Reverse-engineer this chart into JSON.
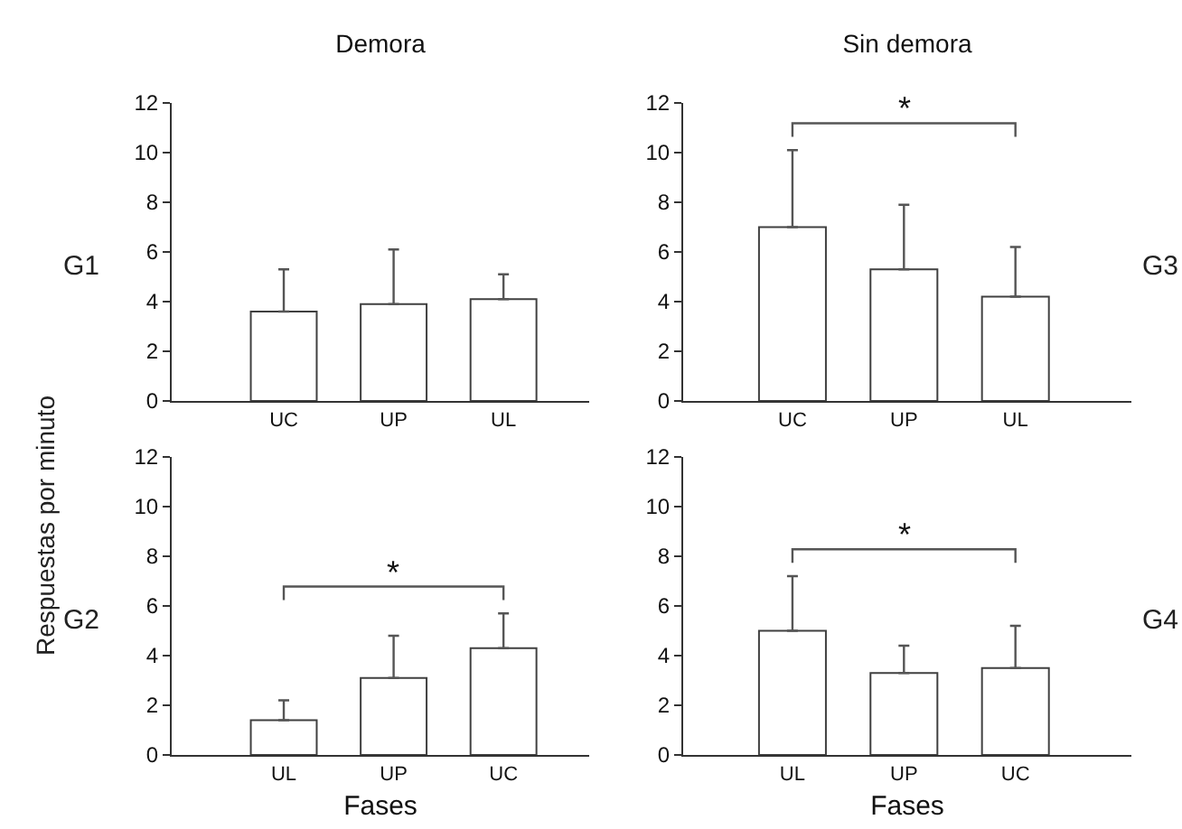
{
  "chart_data": [
    {
      "type": "bar",
      "title": "Demora",
      "ylabel": "Respuestas por minuto",
      "categories": [
        "UC",
        "UP",
        "UL"
      ],
      "values": [
        3.6,
        3.9,
        4.1
      ],
      "errors": [
        [
          3.6,
          5.3
        ],
        [
          3.9,
          6.1
        ],
        [
          4.1,
          5.1
        ]
      ],
      "color": "#ffffff",
      "ylim": [
        0,
        12
      ],
      "yticks": [
        0,
        2,
        4,
        6,
        8,
        10,
        12
      ],
      "grid": false,
      "annotations": [
        "G1"
      ]
    },
    {
      "type": "bar",
      "title": "Sin demora",
      "categories": [
        "UC",
        "UP",
        "UL"
      ],
      "values": [
        7.0,
        5.3,
        4.2
      ],
      "errors": [
        [
          7.0,
          10.1
        ],
        [
          5.3,
          7.9
        ],
        [
          4.2,
          6.2
        ]
      ],
      "color": "#ffffff",
      "ylim": [
        0,
        12
      ],
      "yticks": [
        0,
        2,
        4,
        6,
        8,
        10,
        12
      ],
      "grid": false,
      "annotations": [
        "G3",
        "*"
      ]
    },
    {
      "type": "bar",
      "xlabel": "Fases",
      "categories": [
        "UL",
        "UP",
        "UC"
      ],
      "values": [
        1.4,
        3.1,
        4.3
      ],
      "errors": [
        [
          1.4,
          2.2
        ],
        [
          3.1,
          4.8
        ],
        [
          4.3,
          5.7
        ]
      ],
      "color": "#ffffff",
      "ylim": [
        0,
        12
      ],
      "yticks": [
        0,
        2,
        4,
        6,
        8,
        10,
        12
      ],
      "grid": false,
      "annotations": [
        "G2",
        "*"
      ]
    },
    {
      "type": "bar",
      "xlabel": "Fases",
      "categories": [
        "UL",
        "UP",
        "UC"
      ],
      "values": [
        5.0,
        3.3,
        3.5
      ],
      "errors": [
        [
          5.0,
          7.2
        ],
        [
          3.3,
          4.4
        ],
        [
          3.5,
          5.2
        ]
      ],
      "color": "#ffffff",
      "ylim": [
        0,
        12
      ],
      "yticks": [
        0,
        2,
        4,
        6,
        8,
        10,
        12
      ],
      "grid": false,
      "annotations": [
        "G4",
        "*"
      ]
    }
  ]
}
